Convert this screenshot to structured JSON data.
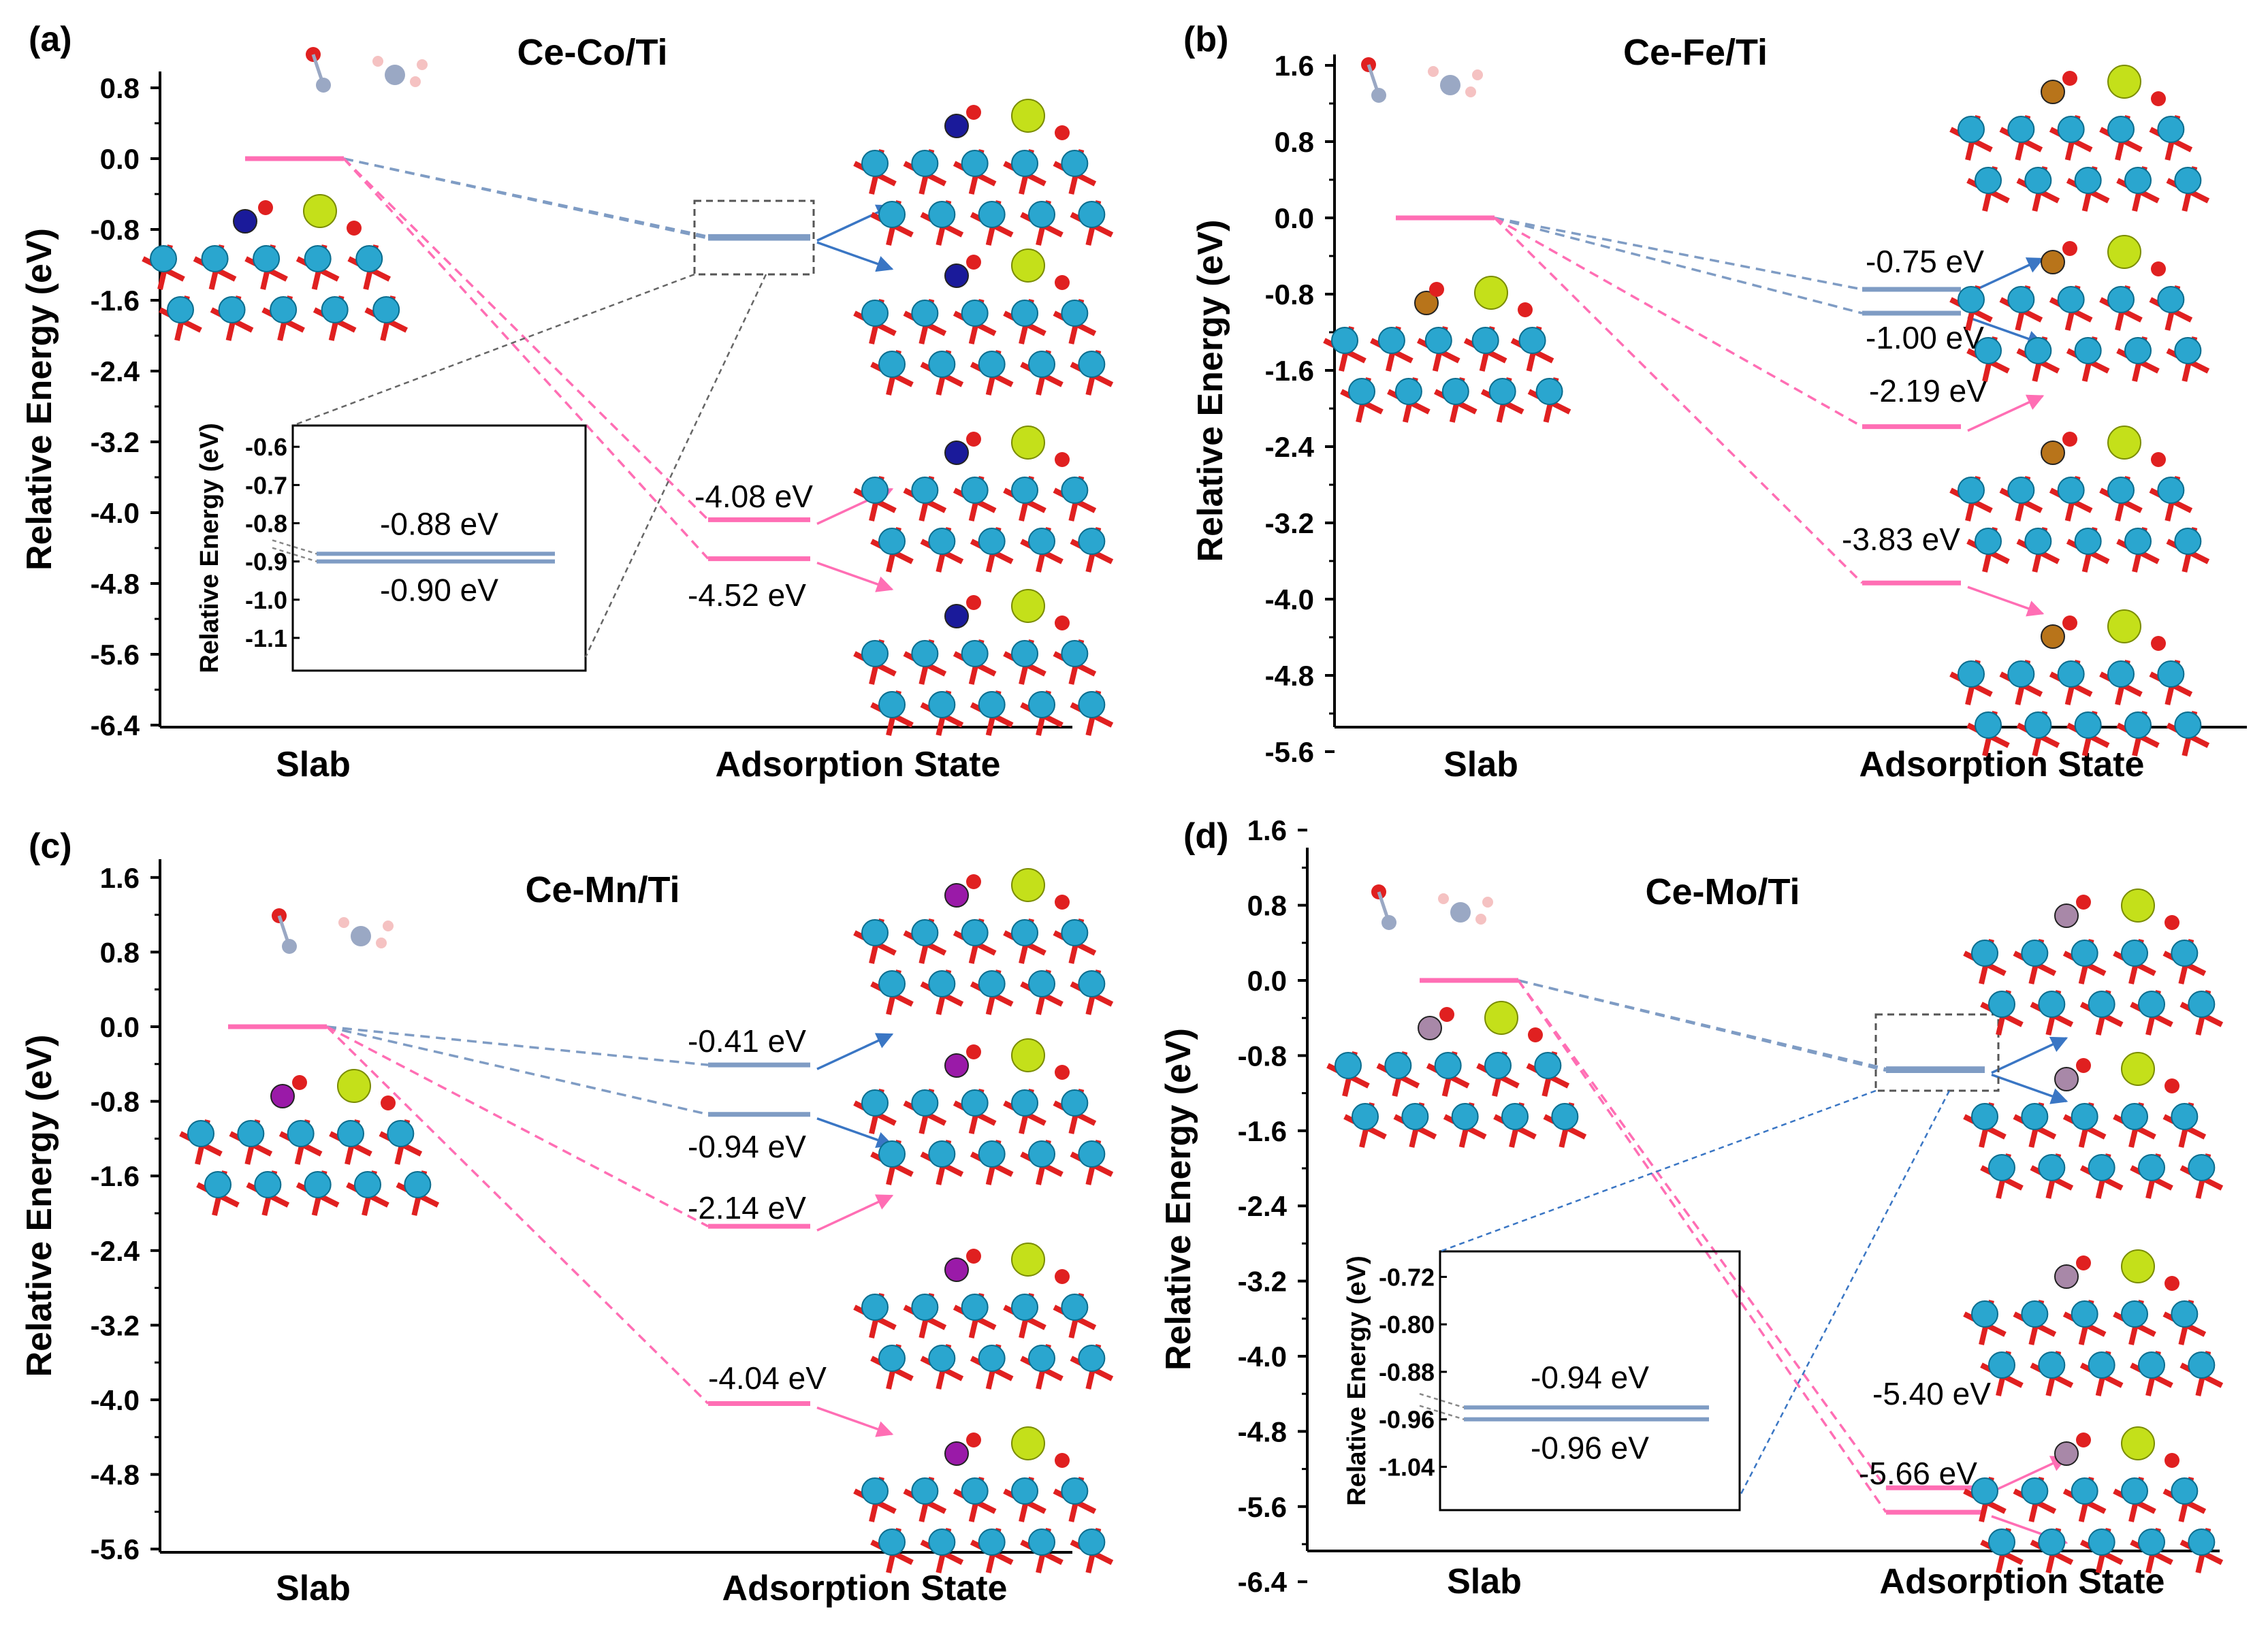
{
  "figure": {
    "background": "#ffffff",
    "pink": "#ff6eb4",
    "blue": "#7f9cc4",
    "arrow_blue": "#3a76c4",
    "grey": "#666666"
  },
  "slab_label": "Slab",
  "adsorption_label": "Adsorption State",
  "chart_data": [
    {
      "type": "energy_level_diagram",
      "panel": "(a)",
      "title": "Ce-Co/Ti",
      "ylabel": "Relative Energy (eV)",
      "ylim": [
        -6.4,
        1.0
      ],
      "yticks": [
        0.8,
        0.0,
        -0.8,
        -1.6,
        -2.4,
        -3.2,
        -4.0,
        -4.8,
        -5.6,
        -6.4
      ],
      "ytick_labels": [
        "0.8",
        "0.0",
        "-0.8",
        "-1.6",
        "-2.4",
        "-3.2",
        "-4.0",
        "-4.8",
        "-5.6",
        "-6.4"
      ],
      "xlabels": [
        "Slab",
        "Adsorption State"
      ],
      "slab_energy": 0.0,
      "levels": [
        {
          "value": -0.88,
          "label": "-0.88 eV",
          "color": "blue",
          "label_side": "inset"
        },
        {
          "value": -0.9,
          "label": "-0.90 eV",
          "color": "blue",
          "label_side": "inset"
        },
        {
          "value": -4.08,
          "label": "-4.08 eV",
          "color": "pink",
          "label_side": "above"
        },
        {
          "value": -4.52,
          "label": "-4.52 eV",
          "color": "pink",
          "label_side": "below"
        }
      ],
      "inset": {
        "ylabel": "Relative Energy (eV)",
        "ylim": [
          -1.15,
          -0.58
        ],
        "yticks": [
          -0.6,
          -0.7,
          -0.8,
          -0.9,
          -1.0,
          -1.1
        ],
        "ytick_labels": [
          "-0.6",
          "-0.7",
          "-0.8",
          "-0.9",
          "-1.0",
          "-1.1"
        ],
        "levels": [
          -0.88,
          -0.9
        ],
        "labels": [
          "-0.88 eV",
          "-0.90 eV"
        ]
      }
    },
    {
      "type": "energy_level_diagram",
      "panel": "(b)",
      "title": "Ce-Fe/Ti",
      "ylabel": "Relative Energy (eV)",
      "ylim": [
        -5.6,
        1.8
      ],
      "yticks": [
        1.6,
        0.8,
        0.0,
        -0.8,
        -1.6,
        -2.4,
        -3.2,
        -4.0,
        -4.8,
        -5.6
      ],
      "ytick_labels": [
        "1.6",
        "0.8",
        "0.0",
        "-0.8",
        "-1.6",
        "-2.4",
        "-3.2",
        "-4.0",
        "-4.8",
        "-5.6"
      ],
      "xlabels": [
        "Slab",
        "Adsorption State"
      ],
      "slab_energy": 0.0,
      "levels": [
        {
          "value": -0.75,
          "label": "-0.75 eV",
          "color": "blue",
          "label_side": "above"
        },
        {
          "value": -1.0,
          "label": "-1.00 eV",
          "color": "blue",
          "label_side": "below"
        },
        {
          "value": -2.19,
          "label": "-2.19 eV",
          "color": "pink",
          "label_side": "above"
        },
        {
          "value": -3.83,
          "label": "-3.83 eV",
          "color": "pink",
          "label_side": "above"
        }
      ]
    },
    {
      "type": "energy_level_diagram",
      "panel": "(c)",
      "title": "Ce-Mn/Ti",
      "ylabel": "Relative Energy (eV)",
      "ylim": [
        -5.6,
        1.8
      ],
      "yticks": [
        1.6,
        0.8,
        0.0,
        -0.8,
        -1.6,
        -2.4,
        -3.2,
        -4.0,
        -4.8,
        -5.6
      ],
      "ytick_labels": [
        "1.6",
        "0.8",
        "0.0",
        "-0.8",
        "-1.6",
        "-2.4",
        "-3.2",
        "-4.0",
        "-4.8",
        "-5.6"
      ],
      "xlabels": [
        "Slab",
        "Adsorption State"
      ],
      "slab_energy": 0.0,
      "levels": [
        {
          "value": -0.41,
          "label": "-0.41 eV",
          "color": "blue",
          "label_side": "above"
        },
        {
          "value": -0.94,
          "label": "-0.94 eV",
          "color": "blue",
          "label_side": "below"
        },
        {
          "value": -2.14,
          "label": "-2.14 eV",
          "color": "pink",
          "label_side": "above"
        },
        {
          "value": -4.04,
          "label": "-4.04 eV",
          "color": "pink",
          "label_side": "above"
        }
      ]
    },
    {
      "type": "energy_level_diagram",
      "panel": "(d)",
      "title": "Ce-Mo/Ti",
      "ylabel": "Relative Energy (eV)",
      "ylim": [
        -6.4,
        1.8
      ],
      "yticks": [
        1.6,
        0.8,
        0.0,
        -0.8,
        -1.6,
        -2.4,
        -3.2,
        -4.0,
        -4.8,
        -5.6,
        -6.4
      ],
      "ytick_labels": [
        "1.6",
        "0.8",
        "0.0",
        "-0.8",
        "-1.6",
        "-2.4",
        "-3.2",
        "-4.0",
        "-4.8",
        "-5.6",
        "-6.4"
      ],
      "xlabels": [
        "Slab",
        "Adsorption State"
      ],
      "slab_energy": 0.0,
      "levels": [
        {
          "value": -0.94,
          "label": "-0.94 eV",
          "color": "blue",
          "label_side": "inset"
        },
        {
          "value": -0.96,
          "label": "-0.96 eV",
          "color": "blue",
          "label_side": "inset"
        },
        {
          "value": -5.4,
          "label": "-5.40 eV",
          "color": "pink",
          "label_side": "above"
        },
        {
          "value": -5.66,
          "label": "-5.66 eV",
          "color": "pink",
          "label_side": "below"
        }
      ],
      "inset": {
        "ylabel": "Relative Energy (eV)",
        "ylim": [
          -1.09,
          -0.7
        ],
        "yticks": [
          -0.72,
          -0.8,
          -0.88,
          -0.96,
          -1.04
        ],
        "ytick_labels": [
          "-0.72",
          "-0.80",
          "-0.88",
          "-0.96",
          "-1.04"
        ],
        "levels": [
          -0.94,
          -0.96
        ],
        "labels": [
          "-0.94 eV",
          "-0.96 eV"
        ]
      }
    }
  ]
}
